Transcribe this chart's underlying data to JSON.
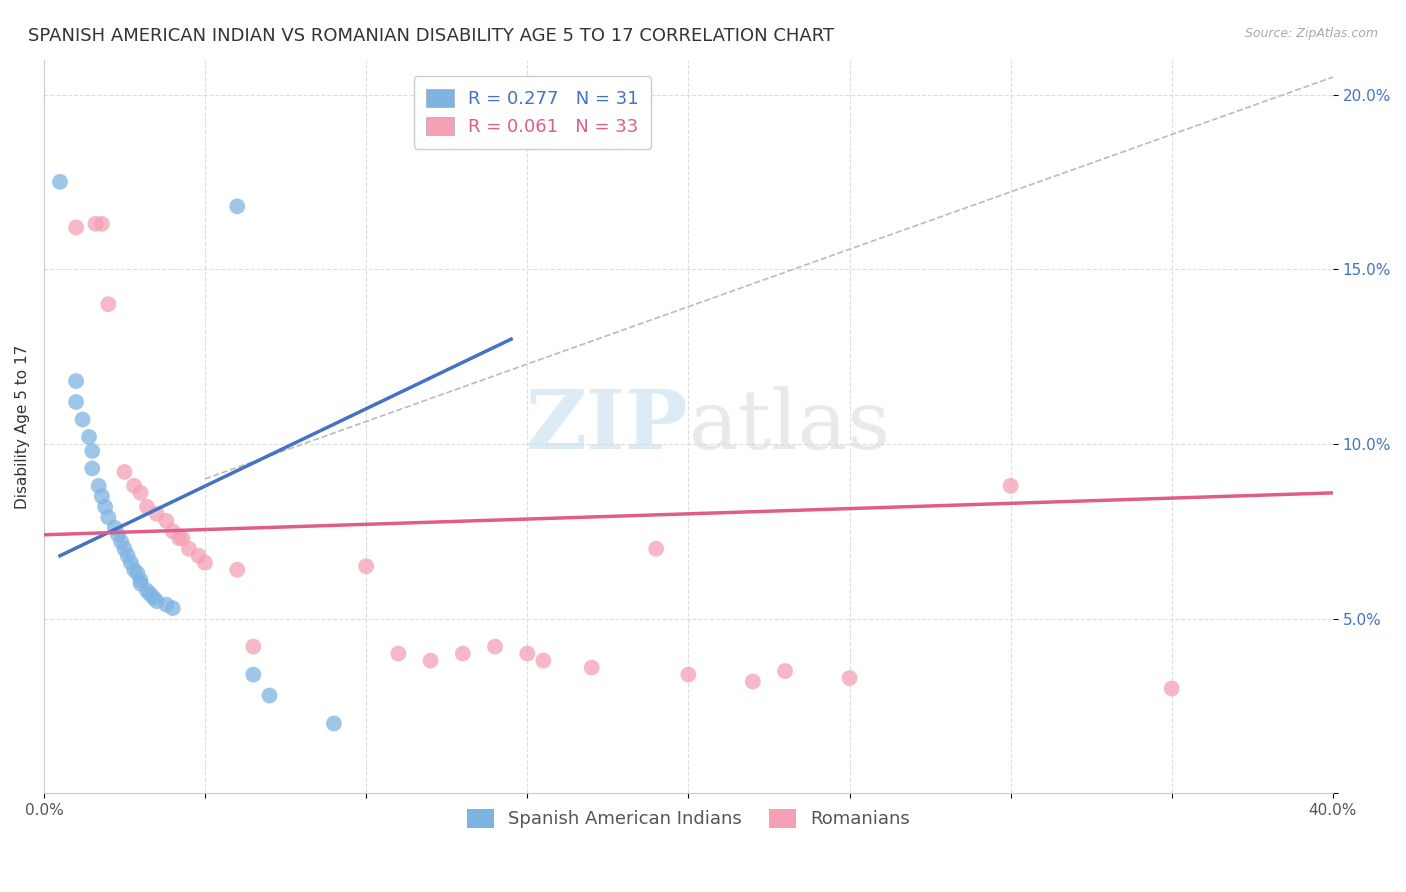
{
  "title": "SPANISH AMERICAN INDIAN VS ROMANIAN DISABILITY AGE 5 TO 17 CORRELATION CHART",
  "source": "Source: ZipAtlas.com",
  "ylabel": "Disability Age 5 to 17",
  "xlim": [
    0.0,
    0.4
  ],
  "ylim": [
    0.0,
    0.21
  ],
  "xticks": [
    0.0,
    0.05,
    0.1,
    0.15,
    0.2,
    0.25,
    0.3,
    0.35,
    0.4
  ],
  "yticks": [
    0.0,
    0.05,
    0.1,
    0.15,
    0.2
  ],
  "legend_r1": "R = 0.277",
  "legend_n1": "N = 31",
  "legend_r2": "R = 0.061",
  "legend_n2": "N = 33",
  "label1": "Spanish American Indians",
  "label2": "Romanians",
  "color1": "#7EB4E2",
  "color2": "#F4A0B5",
  "line_color1": "#4472C4",
  "line_color2": "#E05C8A",
  "trend_line1_x": [
    0.005,
    0.145
  ],
  "trend_line1_y": [
    0.068,
    0.13
  ],
  "trend_line2_x": [
    0.0,
    0.4
  ],
  "trend_line2_y": [
    0.074,
    0.086
  ],
  "diag_line_x": [
    0.05,
    0.4
  ],
  "diag_line_y": [
    0.09,
    0.205
  ],
  "scatter_blue": [
    [
      0.005,
      0.175
    ],
    [
      0.01,
      0.118
    ],
    [
      0.01,
      0.112
    ],
    [
      0.012,
      0.107
    ],
    [
      0.014,
      0.102
    ],
    [
      0.015,
      0.098
    ],
    [
      0.015,
      0.093
    ],
    [
      0.017,
      0.088
    ],
    [
      0.018,
      0.085
    ],
    [
      0.019,
      0.082
    ],
    [
      0.02,
      0.079
    ],
    [
      0.022,
      0.076
    ],
    [
      0.023,
      0.074
    ],
    [
      0.024,
      0.072
    ],
    [
      0.025,
      0.07
    ],
    [
      0.026,
      0.068
    ],
    [
      0.027,
      0.066
    ],
    [
      0.028,
      0.064
    ],
    [
      0.029,
      0.063
    ],
    [
      0.03,
      0.061
    ],
    [
      0.03,
      0.06
    ],
    [
      0.032,
      0.058
    ],
    [
      0.033,
      0.057
    ],
    [
      0.034,
      0.056
    ],
    [
      0.035,
      0.055
    ],
    [
      0.038,
      0.054
    ],
    [
      0.04,
      0.053
    ],
    [
      0.06,
      0.168
    ],
    [
      0.065,
      0.034
    ],
    [
      0.07,
      0.028
    ],
    [
      0.09,
      0.02
    ]
  ],
  "scatter_pink": [
    [
      0.01,
      0.162
    ],
    [
      0.016,
      0.163
    ],
    [
      0.018,
      0.163
    ],
    [
      0.02,
      0.14
    ],
    [
      0.025,
      0.092
    ],
    [
      0.028,
      0.088
    ],
    [
      0.03,
      0.086
    ],
    [
      0.032,
      0.082
    ],
    [
      0.035,
      0.08
    ],
    [
      0.038,
      0.078
    ],
    [
      0.04,
      0.075
    ],
    [
      0.042,
      0.073
    ],
    [
      0.043,
      0.073
    ],
    [
      0.045,
      0.07
    ],
    [
      0.048,
      0.068
    ],
    [
      0.05,
      0.066
    ],
    [
      0.06,
      0.064
    ],
    [
      0.065,
      0.042
    ],
    [
      0.1,
      0.065
    ],
    [
      0.11,
      0.04
    ],
    [
      0.12,
      0.038
    ],
    [
      0.13,
      0.04
    ],
    [
      0.14,
      0.042
    ],
    [
      0.15,
      0.04
    ],
    [
      0.155,
      0.038
    ],
    [
      0.17,
      0.036
    ],
    [
      0.19,
      0.07
    ],
    [
      0.2,
      0.034
    ],
    [
      0.22,
      0.032
    ],
    [
      0.23,
      0.035
    ],
    [
      0.25,
      0.033
    ],
    [
      0.3,
      0.088
    ],
    [
      0.35,
      0.03
    ]
  ],
  "watermark_zip": "ZIP",
  "watermark_atlas": "atlas",
  "title_fontsize": 13,
  "axis_label_fontsize": 11,
  "tick_fontsize": 11,
  "legend_fontsize": 13
}
